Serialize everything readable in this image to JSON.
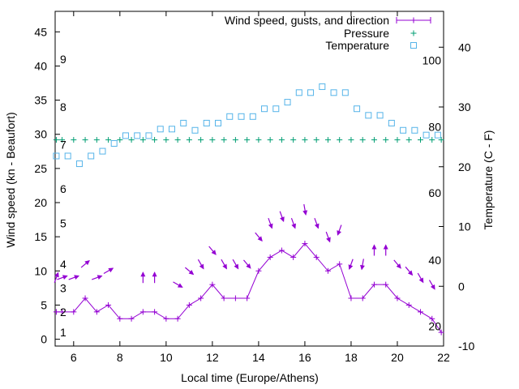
{
  "chart_data": {
    "type": "line",
    "xlabel": "Local time (Europe/Athens)",
    "ylabel": "Wind speed (kn - Beaufort)",
    "y2label": "Temperature (C - F)",
    "xlim": [
      5.2,
      22
    ],
    "ylim": [
      -1,
      48
    ],
    "y2lim": [
      -10,
      46
    ],
    "x_ticks": [
      6,
      8,
      10,
      12,
      14,
      16,
      18,
      20,
      22
    ],
    "y_ticks": [
      0,
      5,
      10,
      15,
      20,
      25,
      30,
      35,
      40,
      45
    ],
    "y2_ticks": [
      -10,
      0,
      10,
      20,
      30,
      40
    ],
    "beaufort_labels": [
      {
        "label": "1",
        "y": 1
      },
      {
        "label": "2",
        "y": 4
      },
      {
        "label": "3",
        "y": 7.5
      },
      {
        "label": "4",
        "y": 11
      },
      {
        "label": "5",
        "y": 17
      },
      {
        "label": "6",
        "y": 22
      },
      {
        "label": "7",
        "y": 28.5
      },
      {
        "label": "8",
        "y": 34
      },
      {
        "label": "9",
        "y": 41
      }
    ],
    "fahrenheit_labels": [
      {
        "label": "20",
        "y2": -6.7
      },
      {
        "label": "40",
        "y2": 4.4
      },
      {
        "label": "60",
        "y2": 15.6
      },
      {
        "label": "80",
        "y2": 26.7
      },
      {
        "label": "100",
        "y2": 37.8
      }
    ],
    "legend_position": "top-right",
    "grid": false,
    "colors": {
      "wind": "#9400d3",
      "pressure": "#009e73",
      "temperature": "#56b4e9"
    },
    "series": [
      {
        "name": "Wind speed, gusts, and direction",
        "x": [
          5.25,
          5.5,
          6.0,
          6.5,
          7.0,
          7.5,
          8.0,
          8.5,
          9.0,
          9.5,
          10.0,
          10.5,
          11.0,
          11.5,
          12.0,
          12.5,
          13.0,
          13.5,
          14.0,
          14.5,
          15.0,
          15.5,
          16.0,
          16.5,
          17.0,
          17.5,
          18.0,
          18.5,
          19.0,
          19.5,
          20.0,
          20.5,
          21.0,
          21.5,
          21.9
        ],
        "values": [
          4,
          4,
          4,
          6,
          4,
          5,
          3,
          3,
          4,
          4,
          3,
          3,
          5,
          6,
          8,
          6,
          6,
          6,
          10,
          12,
          13,
          12,
          14,
          12,
          10,
          11,
          6,
          6,
          8,
          8,
          6,
          5,
          4,
          3,
          1
        ],
        "directions": [
          200,
          250,
          250,
          230,
          250,
          240,
          null,
          null,
          180,
          180,
          null,
          300,
          310,
          330,
          320,
          330,
          330,
          320,
          320,
          340,
          340,
          340,
          350,
          340,
          340,
          20,
          20,
          10,
          180,
          180,
          320,
          320,
          330,
          330,
          null
        ]
      },
      {
        "name": "Pressure",
        "x": [
          5.25,
          5.5,
          6.0,
          6.5,
          7.0,
          7.5,
          8.0,
          8.5,
          9.0,
          9.5,
          10.0,
          10.5,
          11.0,
          11.5,
          12.0,
          12.5,
          13.0,
          13.5,
          14.0,
          14.5,
          15.0,
          15.5,
          16.0,
          16.5,
          17.0,
          17.5,
          18.0,
          18.5,
          19.0,
          19.5,
          20.0,
          20.5,
          21.0,
          21.5,
          21.9
        ],
        "values": [
          24.5,
          24.5,
          24.5,
          24.5,
          24.5,
          24.5,
          24.5,
          24.5,
          24.5,
          24.5,
          24.5,
          24.5,
          24.5,
          24.5,
          24.5,
          24.5,
          24.5,
          24.5,
          24.5,
          24.5,
          24.5,
          24.5,
          24.5,
          24.5,
          24.5,
          24.5,
          24.5,
          24.5,
          24.5,
          24.5,
          24.5,
          24.5,
          24.5,
          24.5,
          24.5
        ]
      },
      {
        "name": "Temperature",
        "x": [
          5.25,
          5.75,
          6.25,
          6.75,
          7.25,
          7.75,
          8.25,
          8.75,
          9.25,
          9.75,
          10.25,
          10.75,
          11.25,
          11.75,
          12.25,
          12.75,
          13.25,
          13.75,
          14.25,
          14.75,
          15.25,
          15.75,
          16.25,
          16.75,
          17.25,
          17.75,
          18.25,
          18.75,
          19.25,
          19.75,
          20.25,
          20.75,
          21.25,
          21.75
        ],
        "values": [
          21.8,
          21.8,
          20.5,
          21.8,
          22.6,
          23.9,
          25.2,
          25.2,
          25.2,
          26.3,
          26.3,
          27.3,
          26.1,
          27.3,
          27.3,
          28.4,
          28.4,
          28.4,
          29.7,
          29.7,
          30.8,
          32.4,
          32.4,
          33.4,
          32.4,
          32.4,
          29.7,
          28.6,
          28.6,
          27.3,
          26.1,
          26.1,
          25.3,
          25.3
        ]
      }
    ]
  }
}
